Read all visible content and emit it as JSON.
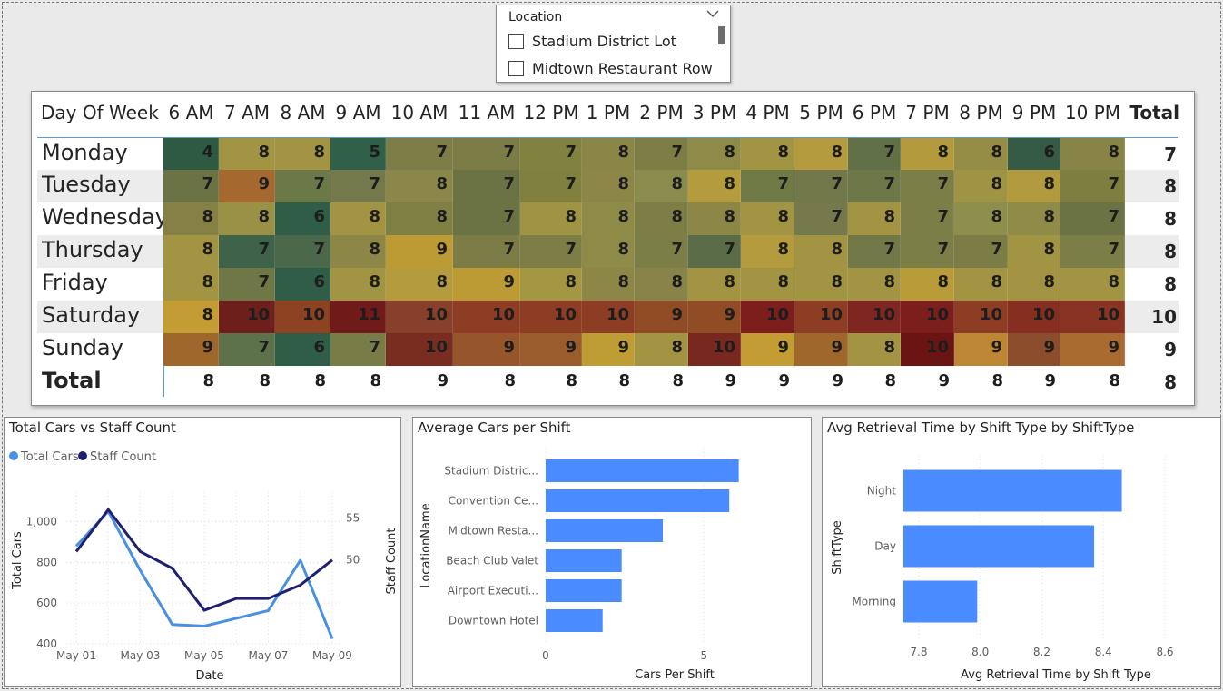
{
  "slicer": {
    "title": "Location",
    "items": [
      "Stadium District Lot",
      "Midtown Restaurant Row"
    ]
  },
  "matrix": {
    "corner_header": "Day Of Week",
    "hours": [
      "6 AM",
      "7 AM",
      "8 AM",
      "9 AM",
      "10 AM",
      "11 AM",
      "12 PM",
      "1 PM",
      "2 PM",
      "3 PM",
      "4 PM",
      "5 PM",
      "6 PM",
      "7 PM",
      "8 PM",
      "9 PM",
      "10 PM"
    ],
    "total_header": "Total",
    "days": [
      "Monday",
      "Tuesday",
      "Wednesday",
      "Thursday",
      "Friday",
      "Saturday",
      "Sunday"
    ],
    "total_row_label": "Total",
    "values": [
      [
        4,
        8,
        8,
        5,
        7,
        7,
        7,
        8,
        7,
        8,
        8,
        8,
        7,
        8,
        8,
        6,
        8
      ],
      [
        7,
        9,
        7,
        7,
        8,
        7,
        7,
        8,
        8,
        8,
        7,
        7,
        7,
        7,
        8,
        8,
        7
      ],
      [
        8,
        8,
        6,
        8,
        8,
        7,
        8,
        8,
        8,
        8,
        8,
        7,
        8,
        7,
        8,
        8,
        7
      ],
      [
        8,
        7,
        7,
        8,
        9,
        7,
        7,
        8,
        7,
        7,
        8,
        8,
        7,
        7,
        7,
        8,
        7
      ],
      [
        8,
        7,
        6,
        8,
        8,
        9,
        8,
        8,
        8,
        8,
        8,
        8,
        8,
        8,
        8,
        8,
        8
      ],
      [
        8,
        10,
        10,
        11,
        10,
        10,
        10,
        10,
        9,
        9,
        10,
        10,
        10,
        10,
        10,
        10,
        10
      ],
      [
        9,
        7,
        6,
        7,
        10,
        9,
        9,
        9,
        8,
        10,
        9,
        9,
        8,
        10,
        9,
        9,
        9
      ]
    ],
    "row_totals": [
      7,
      8,
      8,
      8,
      8,
      10,
      9
    ],
    "col_totals": [
      8,
      8,
      8,
      8,
      9,
      8,
      8,
      8,
      8,
      9,
      9,
      9,
      8,
      9,
      8,
      9,
      8
    ],
    "grand_total": 8,
    "cell_colors": [
      [
        "#2e5a44",
        "#a19543",
        "#a39443",
        "#30604a",
        "#7c7d47",
        "#7c7d46",
        "#80833f",
        "#8a8746",
        "#7d7d46",
        "#8e8b48",
        "#a19442",
        "#b49b3d",
        "#627048",
        "#b39b3d",
        "#958c46",
        "#355a45",
        "#888446"
      ],
      [
        "#6b7345",
        "#a5692f",
        "#6b7848",
        "#74794b",
        "#8b874a",
        "#6b7345",
        "#81813f",
        "#8c8747",
        "#898c4d",
        "#b49b3d",
        "#6f7a47",
        "#72784a",
        "#6d7747",
        "#7c7e48",
        "#9e9443",
        "#b09a3d",
        "#7f7e41"
      ],
      [
        "#848046",
        "#9a9046",
        "#2f5d48",
        "#a39443",
        "#7f8044",
        "#6b7345",
        "#9e9443",
        "#8e8b48",
        "#7d7d46",
        "#8c8747",
        "#a19442",
        "#76794c",
        "#a39443",
        "#7c7e48",
        "#8f8f4d",
        "#8f8b48",
        "#6b7345"
      ],
      [
        "#a39443",
        "#3e634a",
        "#4b684a",
        "#8c8747",
        "#bc9a34",
        "#7c7d46",
        "#7d7d46",
        "#8e8b48",
        "#7c7e48",
        "#5a6d48",
        "#b49b3d",
        "#a39443",
        "#727848",
        "#7c7e48",
        "#7c7d46",
        "#a19442",
        "#7c7e48"
      ],
      [
        "#a39443",
        "#6e7745",
        "#2f5d48",
        "#a19442",
        "#b49b3d",
        "#bc9a34",
        "#a49744",
        "#8c8747",
        "#878349",
        "#a39443",
        "#a39443",
        "#a19442",
        "#a39443",
        "#b89c3a",
        "#a39443",
        "#a39443",
        "#a39443"
      ],
      [
        "#c39c33",
        "#6d1f1c",
        "#8d4222",
        "#6e1b19",
        "#87402a",
        "#8d3d23",
        "#8d3d23",
        "#8d3d23",
        "#8f4c25",
        "#8f4c25",
        "#7b1e1c",
        "#8d3d23",
        "#7e261f",
        "#7b1e1c",
        "#8d3d23",
        "#862f21",
        "#893323"
      ],
      [
        "#a0672d",
        "#5d724b",
        "#2f5d48",
        "#787d48",
        "#782d20",
        "#97552b",
        "#9b5c2d",
        "#be9d35",
        "#a29443",
        "#79281f",
        "#c39c33",
        "#a0672d",
        "#a39443",
        "#6b1414",
        "#bc8634",
        "#8b4d2b",
        "#aa6b30"
      ]
    ]
  },
  "chart_data": [
    {
      "type": "line",
      "title": "Total Cars vs Staff Count",
      "xlabel": "Date",
      "ylabel": "Total Cars",
      "y2label": "Staff Count",
      "x": [
        "May 01",
        "May 02",
        "May 03",
        "May 04",
        "May 05",
        "May 06",
        "May 07",
        "May 08",
        "May 09"
      ],
      "x_tick_labels": [
        "May 01",
        "May 03",
        "May 05",
        "May 07",
        "May 09"
      ],
      "ylim": [
        400,
        1100
      ],
      "y_ticks": [
        "400",
        "600",
        "800",
        "1,000"
      ],
      "y2lim": [
        40,
        57
      ],
      "y2_ticks": [
        "50",
        "55"
      ],
      "legend_position": "top-left",
      "series": [
        {
          "name": "Total Cars",
          "axis": "left",
          "color": "#4a90e2",
          "values": [
            880,
            1050,
            760,
            495,
            487,
            525,
            563,
            810,
            425
          ]
        },
        {
          "name": "Staff Count",
          "axis": "right",
          "color": "#202070",
          "values": [
            51,
            56,
            51,
            49,
            44,
            45.4,
            45.4,
            47,
            50
          ]
        }
      ]
    },
    {
      "type": "bar",
      "orientation": "horizontal",
      "title": "Average Cars per Shift",
      "xlabel": "Cars Per Shift",
      "ylabel": "LocationName",
      "categories": [
        "Stadium Distric...",
        "Convention Ce...",
        "Midtown Resta...",
        "Beach Club Valet",
        "Airport Executi...",
        "Downtown Hotel"
      ],
      "values": [
        6.1,
        5.8,
        3.7,
        2.4,
        2.4,
        1.8
      ],
      "xlim": [
        0,
        7.2
      ],
      "x_ticks": [
        "0",
        "5"
      ],
      "color": "#4a8cff"
    },
    {
      "type": "bar",
      "orientation": "horizontal",
      "title": "Avg Retrieval Time by Shift Type by ShiftType",
      "xlabel": "Avg Retrieval Time by Shift Type",
      "ylabel": "ShiftType",
      "categories": [
        "Night",
        "Day",
        "Morning"
      ],
      "values": [
        8.46,
        8.37,
        7.99
      ],
      "xlim": [
        7.75,
        8.6
      ],
      "x_ticks": [
        "7.8",
        "8.0",
        "8.2",
        "8.4",
        "8.6"
      ],
      "color": "#4a8cff"
    }
  ]
}
